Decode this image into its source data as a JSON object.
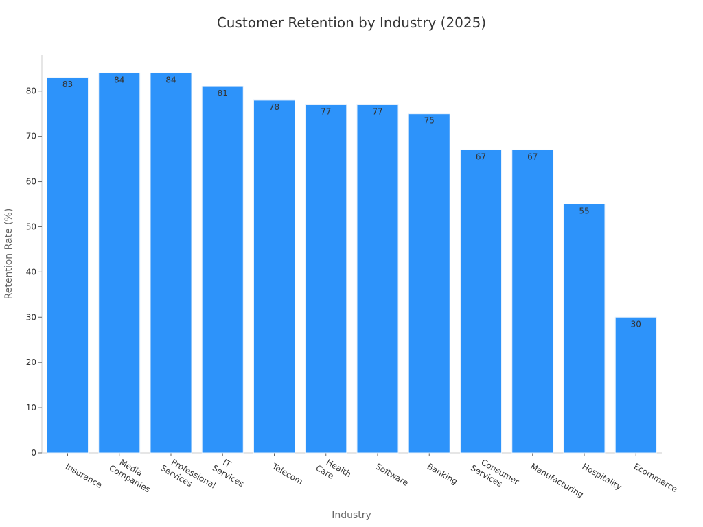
{
  "chart_data": {
    "type": "bar",
    "title": "Customer Retention by Industry (2025)",
    "xlabel": "Industry",
    "ylabel": "Retention Rate (%)",
    "categories": [
      "Insurance",
      "Media Companies",
      "Professional Services",
      "IT Services",
      "Telecom",
      "Health Care",
      "Software",
      "Banking",
      "Consumer Services",
      "Manufacturing",
      "Hospitality",
      "Ecommerce"
    ],
    "values": [
      83,
      84,
      84,
      81,
      78,
      77,
      77,
      75,
      67,
      67,
      55,
      30
    ],
    "value_labels": [
      "83",
      "84",
      "84",
      "81",
      "78",
      "77",
      "77",
      "75",
      "67",
      "67",
      "55",
      "30"
    ],
    "yticks": [
      "0",
      "10",
      "20",
      "30",
      "40",
      "50",
      "60",
      "70",
      "80"
    ],
    "ylim": [
      0,
      88
    ],
    "bar_color": "#2d93fa",
    "bar_edge_color": "#e8f1fb",
    "grid": false,
    "legend": "none"
  }
}
